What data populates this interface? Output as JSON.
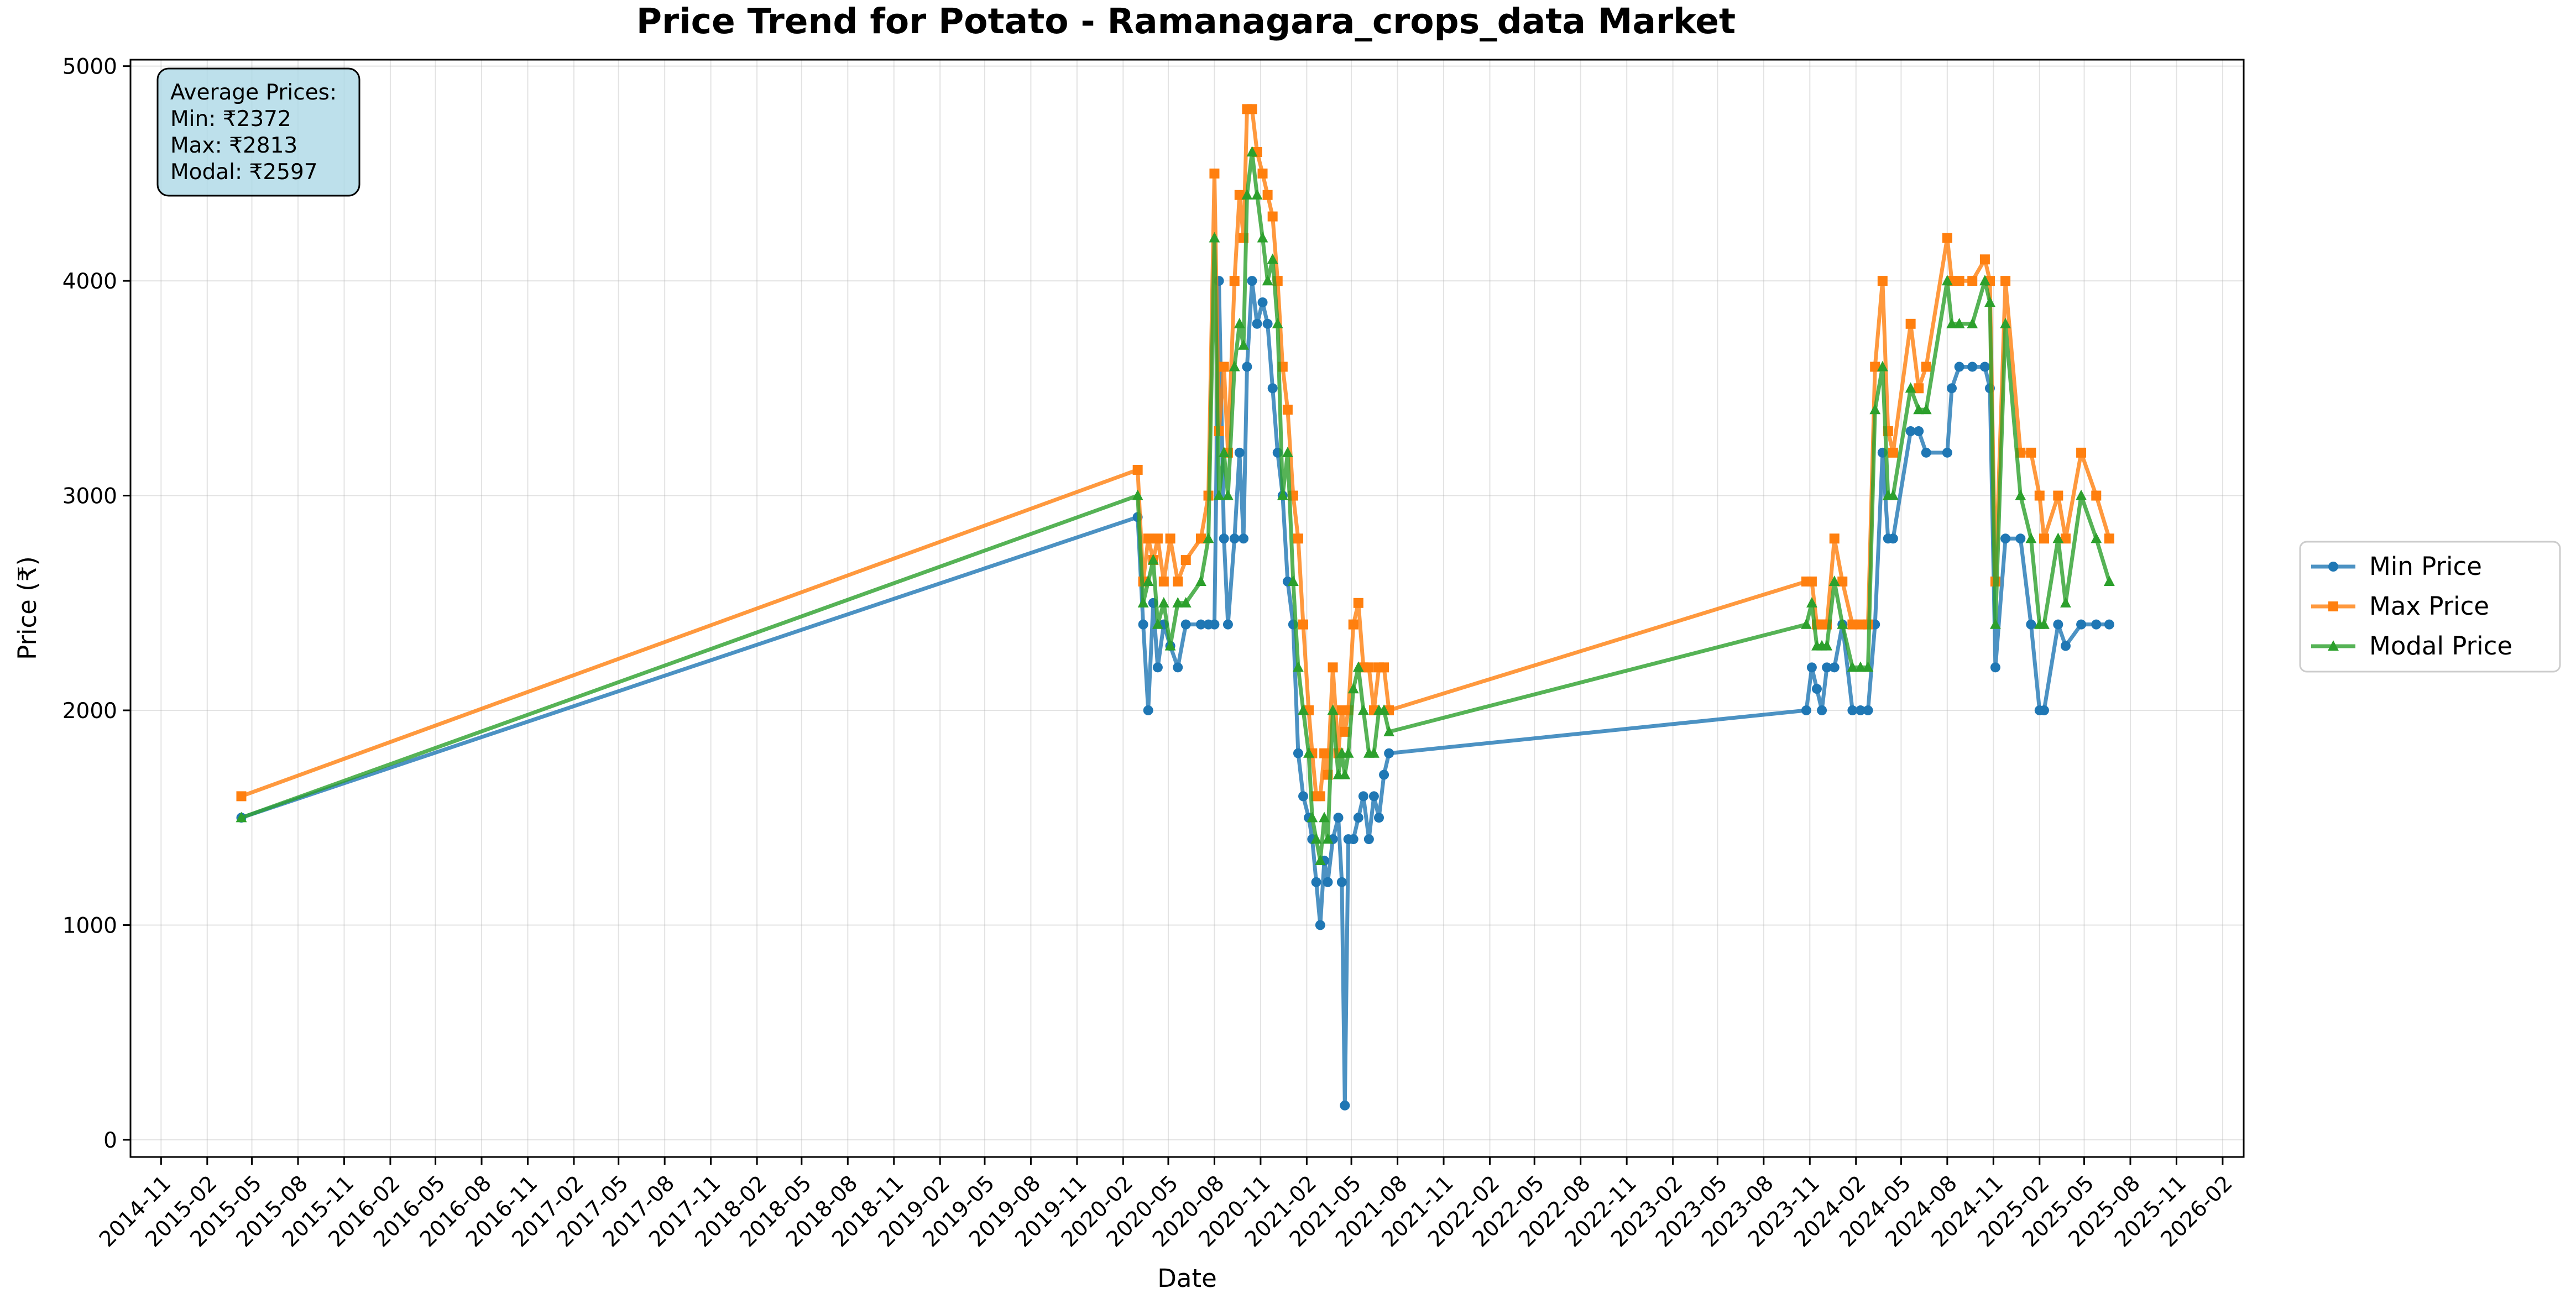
{
  "chart_data": {
    "type": "line",
    "title": "Price Trend for Potato - Ramanagara_crops_data Market",
    "xlabel": "Date",
    "ylabel": "Price (₹)",
    "xlim": [
      "2014-09-01",
      "2026-03-15"
    ],
    "ylim": [
      -80,
      5030
    ],
    "yticks": [
      0,
      1000,
      2000,
      3000,
      4000,
      5000
    ],
    "xticks": [
      "2014-11",
      "2015-02",
      "2015-05",
      "2015-08",
      "2015-11",
      "2016-02",
      "2016-05",
      "2016-08",
      "2016-11",
      "2017-02",
      "2017-05",
      "2017-08",
      "2017-11",
      "2018-02",
      "2018-05",
      "2018-08",
      "2018-11",
      "2019-02",
      "2019-05",
      "2019-08",
      "2019-11",
      "2020-02",
      "2020-05",
      "2020-08",
      "2020-11",
      "2021-02",
      "2021-05",
      "2021-08",
      "2021-11",
      "2022-02",
      "2022-05",
      "2022-08",
      "2022-11",
      "2023-02",
      "2023-05",
      "2023-08",
      "2023-11",
      "2024-02",
      "2024-05",
      "2024-08",
      "2024-11",
      "2025-02",
      "2025-05",
      "2025-08",
      "2025-11",
      "2026-02"
    ],
    "grid": true,
    "legend_position": "right",
    "annotation": {
      "heading": "Average Prices:",
      "lines": [
        "Min: ₹2372",
        "Max: ₹2813",
        "Modal: ₹2597"
      ]
    },
    "series": [
      {
        "name": "Min Price",
        "color": "#1f77b4",
        "marker": "circle",
        "points": [
          [
            "2015-04-10",
            1500
          ],
          [
            "2020-03-01",
            2900
          ],
          [
            "2020-03-12",
            2400
          ],
          [
            "2020-03-22",
            2000
          ],
          [
            "2020-04-01",
            2500
          ],
          [
            "2020-04-10",
            2200
          ],
          [
            "2020-04-22",
            2400
          ],
          [
            "2020-05-05",
            2300
          ],
          [
            "2020-05-20",
            2200
          ],
          [
            "2020-06-05",
            2400
          ],
          [
            "2020-07-05",
            2400
          ],
          [
            "2020-07-20",
            2400
          ],
          [
            "2020-08-01",
            2400
          ],
          [
            "2020-08-10",
            4000
          ],
          [
            "2020-08-20",
            2800
          ],
          [
            "2020-08-28",
            2400
          ],
          [
            "2020-09-10",
            2800
          ],
          [
            "2020-09-20",
            3200
          ],
          [
            "2020-09-28",
            2800
          ],
          [
            "2020-10-05",
            3600
          ],
          [
            "2020-10-15",
            4000
          ],
          [
            "2020-10-25",
            3800
          ],
          [
            "2020-11-05",
            3900
          ],
          [
            "2020-11-15",
            3800
          ],
          [
            "2020-11-25",
            3500
          ],
          [
            "2020-12-05",
            3200
          ],
          [
            "2020-12-15",
            3000
          ],
          [
            "2020-12-25",
            2600
          ],
          [
            "2021-01-05",
            2400
          ],
          [
            "2021-01-15",
            1800
          ],
          [
            "2021-01-25",
            1600
          ],
          [
            "2021-02-05",
            1500
          ],
          [
            "2021-02-12",
            1400
          ],
          [
            "2021-02-20",
            1200
          ],
          [
            "2021-02-28",
            1000
          ],
          [
            "2021-03-08",
            1300
          ],
          [
            "2021-03-15",
            1200
          ],
          [
            "2021-03-25",
            1400
          ],
          [
            "2021-04-05",
            1500
          ],
          [
            "2021-04-12",
            1200
          ],
          [
            "2021-04-18",
            160
          ],
          [
            "2021-04-25",
            1400
          ],
          [
            "2021-05-05",
            1400
          ],
          [
            "2021-05-15",
            1500
          ],
          [
            "2021-05-25",
            1600
          ],
          [
            "2021-06-05",
            1400
          ],
          [
            "2021-06-15",
            1600
          ],
          [
            "2021-06-25",
            1500
          ],
          [
            "2021-07-05",
            1700
          ],
          [
            "2021-07-15",
            1800
          ],
          [
            "2023-10-25",
            2000
          ],
          [
            "2023-11-05",
            2200
          ],
          [
            "2023-11-15",
            2100
          ],
          [
            "2023-11-25",
            2000
          ],
          [
            "2023-12-05",
            2200
          ],
          [
            "2023-12-20",
            2200
          ],
          [
            "2024-01-05",
            2400
          ],
          [
            "2024-01-25",
            2000
          ],
          [
            "2024-02-10",
            2000
          ],
          [
            "2024-02-25",
            2000
          ],
          [
            "2024-03-10",
            2400
          ],
          [
            "2024-03-25",
            3200
          ],
          [
            "2024-04-05",
            2800
          ],
          [
            "2024-04-15",
            2800
          ],
          [
            "2024-05-20",
            3300
          ],
          [
            "2024-06-05",
            3300
          ],
          [
            "2024-06-20",
            3200
          ],
          [
            "2024-08-01",
            3200
          ],
          [
            "2024-08-10",
            3500
          ],
          [
            "2024-08-25",
            3600
          ],
          [
            "2024-09-20",
            3600
          ],
          [
            "2024-10-15",
            3600
          ],
          [
            "2024-10-25",
            3500
          ],
          [
            "2024-11-05",
            2200
          ],
          [
            "2024-11-25",
            2800
          ],
          [
            "2024-12-25",
            2800
          ],
          [
            "2025-01-15",
            2400
          ],
          [
            "2025-02-01",
            2000
          ],
          [
            "2025-02-10",
            2000
          ],
          [
            "2025-03-10",
            2400
          ],
          [
            "2025-03-25",
            2300
          ],
          [
            "2025-04-25",
            2400
          ],
          [
            "2025-05-25",
            2400
          ],
          [
            "2025-06-20",
            2400
          ]
        ]
      },
      {
        "name": "Max Price",
        "color": "#ff7f0e",
        "marker": "square",
        "points": [
          [
            "2015-04-10",
            1600
          ],
          [
            "2020-03-01",
            3120
          ],
          [
            "2020-03-12",
            2600
          ],
          [
            "2020-03-22",
            2800
          ],
          [
            "2020-04-01",
            2700
          ],
          [
            "2020-04-10",
            2800
          ],
          [
            "2020-04-22",
            2600
          ],
          [
            "2020-05-05",
            2800
          ],
          [
            "2020-05-20",
            2600
          ],
          [
            "2020-06-05",
            2700
          ],
          [
            "2020-07-05",
            2800
          ],
          [
            "2020-07-20",
            3000
          ],
          [
            "2020-08-01",
            4500
          ],
          [
            "2020-08-10",
            3300
          ],
          [
            "2020-08-20",
            3600
          ],
          [
            "2020-08-28",
            3200
          ],
          [
            "2020-09-10",
            4000
          ],
          [
            "2020-09-20",
            4400
          ],
          [
            "2020-09-28",
            4200
          ],
          [
            "2020-10-05",
            4800
          ],
          [
            "2020-10-15",
            4800
          ],
          [
            "2020-10-25",
            4600
          ],
          [
            "2020-11-05",
            4500
          ],
          [
            "2020-11-15",
            4400
          ],
          [
            "2020-11-25",
            4300
          ],
          [
            "2020-12-05",
            4000
          ],
          [
            "2020-12-15",
            3600
          ],
          [
            "2020-12-25",
            3400
          ],
          [
            "2021-01-05",
            3000
          ],
          [
            "2021-01-15",
            2800
          ],
          [
            "2021-01-25",
            2400
          ],
          [
            "2021-02-05",
            2000
          ],
          [
            "2021-02-12",
            1800
          ],
          [
            "2021-02-20",
            1600
          ],
          [
            "2021-02-28",
            1600
          ],
          [
            "2021-03-08",
            1800
          ],
          [
            "2021-03-15",
            1700
          ],
          [
            "2021-03-25",
            2200
          ],
          [
            "2021-04-05",
            1800
          ],
          [
            "2021-04-12",
            2000
          ],
          [
            "2021-04-18",
            1900
          ],
          [
            "2021-04-25",
            2000
          ],
          [
            "2021-05-05",
            2400
          ],
          [
            "2021-05-15",
            2500
          ],
          [
            "2021-05-25",
            2200
          ],
          [
            "2021-06-05",
            2200
          ],
          [
            "2021-06-15",
            2000
          ],
          [
            "2021-06-25",
            2200
          ],
          [
            "2021-07-05",
            2200
          ],
          [
            "2021-07-15",
            2000
          ],
          [
            "2023-10-25",
            2600
          ],
          [
            "2023-11-05",
            2600
          ],
          [
            "2023-11-15",
            2400
          ],
          [
            "2023-11-25",
            2400
          ],
          [
            "2023-12-05",
            2400
          ],
          [
            "2023-12-20",
            2800
          ],
          [
            "2024-01-05",
            2600
          ],
          [
            "2024-01-25",
            2400
          ],
          [
            "2024-02-10",
            2400
          ],
          [
            "2024-02-25",
            2400
          ],
          [
            "2024-03-10",
            3600
          ],
          [
            "2024-03-25",
            4000
          ],
          [
            "2024-04-05",
            3300
          ],
          [
            "2024-04-15",
            3200
          ],
          [
            "2024-05-20",
            3800
          ],
          [
            "2024-06-05",
            3500
          ],
          [
            "2024-06-20",
            3600
          ],
          [
            "2024-08-01",
            4200
          ],
          [
            "2024-08-10",
            4000
          ],
          [
            "2024-08-25",
            4000
          ],
          [
            "2024-09-20",
            4000
          ],
          [
            "2024-10-15",
            4100
          ],
          [
            "2024-10-25",
            4000
          ],
          [
            "2024-11-05",
            2600
          ],
          [
            "2024-11-25",
            4000
          ],
          [
            "2024-12-25",
            3200
          ],
          [
            "2025-01-15",
            3200
          ],
          [
            "2025-02-01",
            3000
          ],
          [
            "2025-02-10",
            2800
          ],
          [
            "2025-03-10",
            3000
          ],
          [
            "2025-03-25",
            2800
          ],
          [
            "2025-04-25",
            3200
          ],
          [
            "2025-05-25",
            3000
          ],
          [
            "2025-06-20",
            2800
          ]
        ]
      },
      {
        "name": "Modal Price",
        "color": "#2ca02c",
        "marker": "triangle",
        "points": [
          [
            "2015-04-10",
            1500
          ],
          [
            "2020-03-01",
            3000
          ],
          [
            "2020-03-12",
            2500
          ],
          [
            "2020-03-22",
            2600
          ],
          [
            "2020-04-01",
            2700
          ],
          [
            "2020-04-10",
            2400
          ],
          [
            "2020-04-22",
            2500
          ],
          [
            "2020-05-05",
            2300
          ],
          [
            "2020-05-20",
            2500
          ],
          [
            "2020-06-05",
            2500
          ],
          [
            "2020-07-05",
            2600
          ],
          [
            "2020-07-20",
            2800
          ],
          [
            "2020-08-01",
            4200
          ],
          [
            "2020-08-10",
            3000
          ],
          [
            "2020-08-20",
            3200
          ],
          [
            "2020-08-28",
            3000
          ],
          [
            "2020-09-10",
            3600
          ],
          [
            "2020-09-20",
            3800
          ],
          [
            "2020-09-28",
            3700
          ],
          [
            "2020-10-05",
            4400
          ],
          [
            "2020-10-15",
            4600
          ],
          [
            "2020-10-25",
            4400
          ],
          [
            "2020-11-05",
            4200
          ],
          [
            "2020-11-15",
            4000
          ],
          [
            "2020-11-25",
            4100
          ],
          [
            "2020-12-05",
            3800
          ],
          [
            "2020-12-15",
            3000
          ],
          [
            "2020-12-25",
            3200
          ],
          [
            "2021-01-05",
            2600
          ],
          [
            "2021-01-15",
            2200
          ],
          [
            "2021-01-25",
            2000
          ],
          [
            "2021-02-05",
            1800
          ],
          [
            "2021-02-12",
            1500
          ],
          [
            "2021-02-20",
            1400
          ],
          [
            "2021-02-28",
            1300
          ],
          [
            "2021-03-08",
            1500
          ],
          [
            "2021-03-15",
            1400
          ],
          [
            "2021-03-25",
            2000
          ],
          [
            "2021-04-05",
            1700
          ],
          [
            "2021-04-12",
            1800
          ],
          [
            "2021-04-18",
            1700
          ],
          [
            "2021-04-25",
            1800
          ],
          [
            "2021-05-05",
            2100
          ],
          [
            "2021-05-15",
            2200
          ],
          [
            "2021-05-25",
            2000
          ],
          [
            "2021-06-05",
            1800
          ],
          [
            "2021-06-15",
            1800
          ],
          [
            "2021-06-25",
            2000
          ],
          [
            "2021-07-05",
            2000
          ],
          [
            "2021-07-15",
            1900
          ],
          [
            "2023-10-25",
            2400
          ],
          [
            "2023-11-05",
            2500
          ],
          [
            "2023-11-15",
            2300
          ],
          [
            "2023-11-25",
            2300
          ],
          [
            "2023-12-05",
            2300
          ],
          [
            "2023-12-20",
            2600
          ],
          [
            "2024-01-05",
            2400
          ],
          [
            "2024-01-25",
            2200
          ],
          [
            "2024-02-10",
            2200
          ],
          [
            "2024-02-25",
            2200
          ],
          [
            "2024-03-10",
            3400
          ],
          [
            "2024-03-25",
            3600
          ],
          [
            "2024-04-05",
            3000
          ],
          [
            "2024-04-15",
            3000
          ],
          [
            "2024-05-20",
            3500
          ],
          [
            "2024-06-05",
            3400
          ],
          [
            "2024-06-20",
            3400
          ],
          [
            "2024-08-01",
            4000
          ],
          [
            "2024-08-10",
            3800
          ],
          [
            "2024-08-25",
            3800
          ],
          [
            "2024-09-20",
            3800
          ],
          [
            "2024-10-15",
            4000
          ],
          [
            "2024-10-25",
            3900
          ],
          [
            "2024-11-05",
            2400
          ],
          [
            "2024-11-25",
            3800
          ],
          [
            "2024-12-25",
            3000
          ],
          [
            "2025-01-15",
            2800
          ],
          [
            "2025-02-01",
            2400
          ],
          [
            "2025-02-10",
            2400
          ],
          [
            "2025-03-10",
            2800
          ],
          [
            "2025-03-25",
            2500
          ],
          [
            "2025-04-25",
            3000
          ],
          [
            "2025-05-25",
            2800
          ],
          [
            "2025-06-20",
            2600
          ]
        ]
      }
    ]
  }
}
